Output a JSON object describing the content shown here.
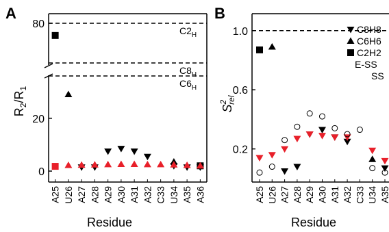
{
  "chart_data": [
    {
      "panel_label": "A",
      "type": "scatter",
      "xlabel": "Residue",
      "ylabel": "R2/R1",
      "categories": [
        "A25",
        "U26",
        "A27",
        "A28",
        "A29",
        "A30",
        "A31",
        "A32",
        "C33",
        "U34",
        "A35",
        "A36"
      ],
      "broken_axis": true,
      "y_ticks": [
        "0",
        "20",
        "80"
      ],
      "reference_lines": [
        {
          "label_main": "C2",
          "label_sub": "H",
          "value": 80
        },
        {
          "label_main": "C8",
          "label_sub": "H",
          "value": 54
        },
        {
          "label_main": "C6",
          "label_sub": "H",
          "value": 36
        }
      ],
      "series": [
        {
          "marker": "triangle-down",
          "color": "#000000",
          "values": [
            null,
            null,
            1.5,
            1.5,
            7.5,
            8.5,
            7.5,
            5.5,
            null,
            2,
            1.5,
            1.5
          ]
        },
        {
          "marker": "triangle-up",
          "color": "#000000",
          "values": [
            null,
            29,
            null,
            null,
            null,
            null,
            null,
            null,
            null,
            3.5,
            null,
            null
          ]
        },
        {
          "marker": "square",
          "color": "#000000",
          "values": [
            72,
            null,
            null,
            null,
            null,
            null,
            null,
            null,
            null,
            null,
            null,
            2
          ]
        },
        {
          "marker": "square",
          "color": "#e8202a",
          "values": [
            1.8,
            null,
            null,
            null,
            null,
            null,
            null,
            null,
            null,
            null,
            null,
            null
          ]
        },
        {
          "marker": "triangle-up",
          "color": "#e8202a",
          "values": [
            null,
            2.2,
            2.3,
            2.4,
            2.5,
            2.6,
            2.6,
            2.5,
            2.5,
            2.4,
            2.2,
            2.0
          ]
        }
      ]
    },
    {
      "panel_label": "B",
      "type": "scatter",
      "xlabel": "Residue",
      "ylabel_main": "S",
      "ylabel_sup": "2",
      "ylabel_sub": "rel",
      "categories": [
        "A25",
        "U26",
        "A27",
        "A28",
        "A29",
        "A30",
        "A31",
        "A32",
        "C33",
        "U34",
        "A35",
        "A36"
      ],
      "ylim": [
        0.05,
        1.05
      ],
      "y_ticks": [
        "0.2",
        "0.6",
        "1.0"
      ],
      "reference_line": 1.0,
      "legend": [
        {
          "marker": "triangle-down",
          "color": "#000000",
          "label": "C8H8"
        },
        {
          "marker": "triangle-up",
          "color": "#000000",
          "label": "C6H6"
        },
        {
          "marker": "square",
          "color": "#000000",
          "label": "C2H2"
        },
        {
          "marker": "none",
          "color": "#000000",
          "label": "E-SS"
        },
        {
          "marker": "none",
          "color": "#e8202a",
          "label": "SS"
        }
      ],
      "series": [
        {
          "marker": "triangle-down",
          "color": "#000000",
          "values": [
            null,
            null,
            0.05,
            0.08,
            0.3,
            0.33,
            0.28,
            0.25,
            null,
            null,
            0.07,
            0.06
          ]
        },
        {
          "marker": "triangle-up",
          "color": "#000000",
          "values": [
            null,
            0.89,
            null,
            null,
            null,
            null,
            null,
            null,
            null,
            0.13,
            null,
            null
          ]
        },
        {
          "marker": "square",
          "color": "#000000",
          "values": [
            0.87,
            null,
            null,
            null,
            null,
            null,
            null,
            null,
            null,
            null,
            null,
            0.07
          ]
        },
        {
          "marker": "triangle-down",
          "color": "#e8202a",
          "values": [
            0.14,
            0.16,
            0.2,
            0.27,
            0.3,
            0.29,
            0.28,
            0.28,
            null,
            0.19,
            0.12,
            0.12
          ]
        },
        {
          "marker": "circle-open",
          "color": "#000000",
          "values": [
            0.04,
            0.08,
            0.26,
            0.35,
            0.44,
            0.42,
            0.34,
            0.3,
            0.33,
            0.07,
            0.04,
            0.03
          ]
        }
      ]
    }
  ]
}
